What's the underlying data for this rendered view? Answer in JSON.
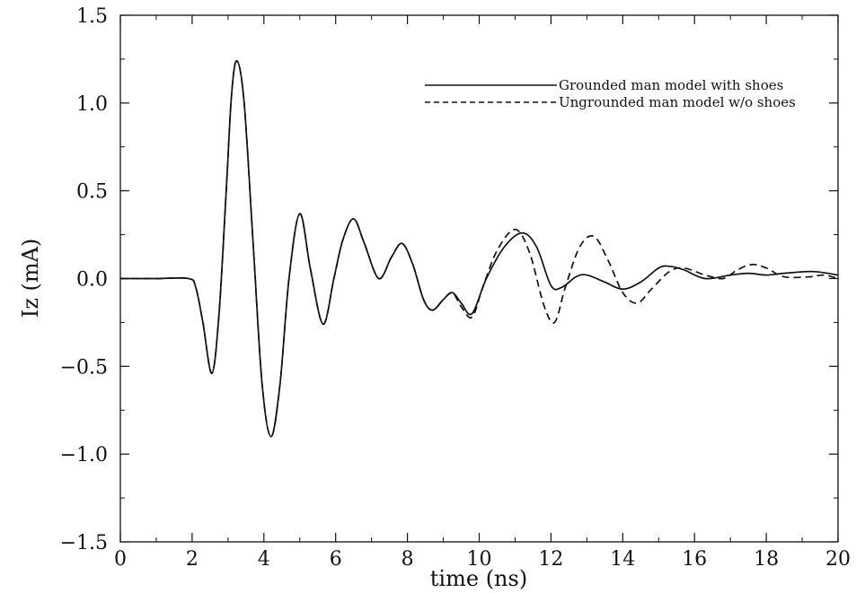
{
  "chart_data": {
    "type": "line",
    "title": "",
    "xlabel": "time (ns)",
    "ylabel": "Iz (mA)",
    "xlim": [
      0,
      20
    ],
    "ylim": [
      -1.5,
      1.5
    ],
    "grid": false,
    "legend_position": "top-right",
    "x_ticks": [
      0,
      2,
      4,
      6,
      8,
      10,
      12,
      14,
      16,
      18,
      20
    ],
    "x_tick_labels": [
      "0",
      "2",
      "4",
      "6",
      "8",
      "10",
      "12",
      "14",
      "16",
      "18",
      "20"
    ],
    "y_ticks": [
      -1.5,
      -1.0,
      -0.5,
      0.0,
      0.5,
      1.0,
      1.5
    ],
    "y_tick_labels": [
      "−1.5",
      "−1.0",
      "−0.5",
      "0.0",
      "0.5",
      "1.0",
      "1.5"
    ],
    "series": [
      {
        "name": "Grounded man model with shoes",
        "style": "solid",
        "color": "#111111",
        "points": [
          [
            0,
            0
          ],
          [
            1.0,
            0
          ],
          [
            1.9,
            0
          ],
          [
            2.1,
            -0.05
          ],
          [
            2.3,
            -0.25
          ],
          [
            2.55,
            -0.54
          ],
          [
            2.75,
            -0.2
          ],
          [
            2.95,
            0.5
          ],
          [
            3.1,
            1.05
          ],
          [
            3.25,
            1.24
          ],
          [
            3.45,
            1.0
          ],
          [
            3.7,
            0.2
          ],
          [
            3.95,
            -0.6
          ],
          [
            4.2,
            -0.9
          ],
          [
            4.45,
            -0.6
          ],
          [
            4.7,
            0.0
          ],
          [
            5.0,
            0.37
          ],
          [
            5.3,
            0.05
          ],
          [
            5.65,
            -0.26
          ],
          [
            5.95,
            0.0
          ],
          [
            6.2,
            0.22
          ],
          [
            6.5,
            0.34
          ],
          [
            6.8,
            0.2
          ],
          [
            7.2,
            0.0
          ],
          [
            7.55,
            0.12
          ],
          [
            7.85,
            0.2
          ],
          [
            8.15,
            0.08
          ],
          [
            8.45,
            -0.12
          ],
          [
            8.7,
            -0.18
          ],
          [
            9.0,
            -0.12
          ],
          [
            9.25,
            -0.08
          ],
          [
            9.5,
            -0.14
          ],
          [
            9.8,
            -0.2
          ],
          [
            10.2,
            0.0
          ],
          [
            10.7,
            0.18
          ],
          [
            11.2,
            0.26
          ],
          [
            11.6,
            0.18
          ],
          [
            12.0,
            -0.04
          ],
          [
            12.3,
            -0.05
          ],
          [
            12.7,
            0.01
          ],
          [
            13.0,
            0.02
          ],
          [
            13.5,
            -0.02
          ],
          [
            14.0,
            -0.06
          ],
          [
            14.5,
            -0.02
          ],
          [
            15.0,
            0.06
          ],
          [
            15.3,
            0.07
          ],
          [
            15.7,
            0.05
          ],
          [
            16.3,
            0.0
          ],
          [
            17.0,
            0.02
          ],
          [
            17.5,
            0.03
          ],
          [
            18.0,
            0.02
          ],
          [
            18.5,
            0.03
          ],
          [
            19.3,
            0.04
          ],
          [
            20.0,
            0.02
          ]
        ]
      },
      {
        "name": "Ungrounded man model w/o shoes",
        "style": "dashed",
        "color": "#111111",
        "points": [
          [
            0,
            0
          ],
          [
            1.0,
            0
          ],
          [
            1.9,
            0
          ],
          [
            2.1,
            -0.05
          ],
          [
            2.3,
            -0.25
          ],
          [
            2.55,
            -0.54
          ],
          [
            2.75,
            -0.2
          ],
          [
            2.95,
            0.5
          ],
          [
            3.1,
            1.05
          ],
          [
            3.25,
            1.24
          ],
          [
            3.45,
            1.0
          ],
          [
            3.7,
            0.2
          ],
          [
            3.95,
            -0.6
          ],
          [
            4.2,
            -0.9
          ],
          [
            4.45,
            -0.6
          ],
          [
            4.7,
            0.0
          ],
          [
            5.0,
            0.37
          ],
          [
            5.3,
            0.05
          ],
          [
            5.65,
            -0.26
          ],
          [
            5.95,
            0.0
          ],
          [
            6.2,
            0.22
          ],
          [
            6.5,
            0.34
          ],
          [
            6.8,
            0.2
          ],
          [
            7.2,
            0.0
          ],
          [
            7.55,
            0.12
          ],
          [
            7.85,
            0.2
          ],
          [
            8.15,
            0.08
          ],
          [
            8.45,
            -0.12
          ],
          [
            8.7,
            -0.18
          ],
          [
            9.0,
            -0.12
          ],
          [
            9.25,
            -0.08
          ],
          [
            9.5,
            -0.16
          ],
          [
            9.8,
            -0.22
          ],
          [
            10.1,
            -0.05
          ],
          [
            10.5,
            0.16
          ],
          [
            11.0,
            0.28
          ],
          [
            11.4,
            0.15
          ],
          [
            11.8,
            -0.15
          ],
          [
            12.1,
            -0.25
          ],
          [
            12.4,
            -0.05
          ],
          [
            12.8,
            0.18
          ],
          [
            13.2,
            0.24
          ],
          [
            13.6,
            0.1
          ],
          [
            14.0,
            -0.08
          ],
          [
            14.4,
            -0.14
          ],
          [
            14.8,
            -0.06
          ],
          [
            15.3,
            0.04
          ],
          [
            15.7,
            0.06
          ],
          [
            16.3,
            0.02
          ],
          [
            16.8,
            0.0
          ],
          [
            17.2,
            0.05
          ],
          [
            17.6,
            0.08
          ],
          [
            18.0,
            0.06
          ],
          [
            18.5,
            0.01
          ],
          [
            19.2,
            0.01
          ],
          [
            19.6,
            0.02
          ],
          [
            20.0,
            0.0
          ]
        ]
      }
    ]
  }
}
